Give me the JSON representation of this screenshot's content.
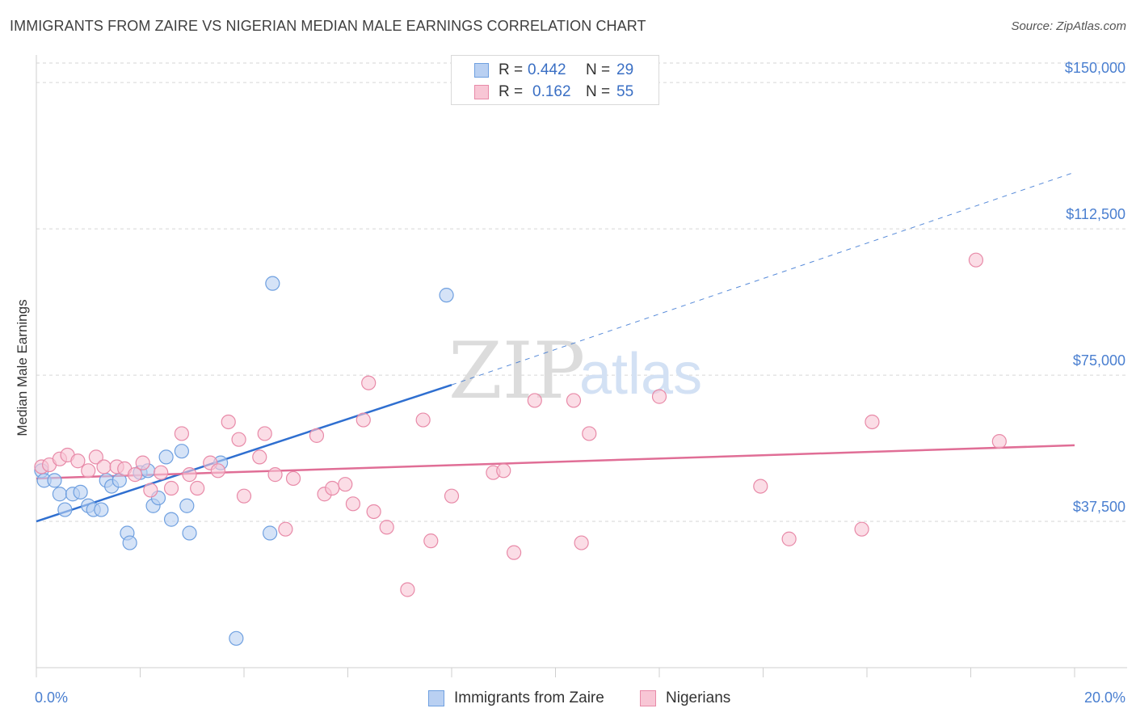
{
  "header": {
    "title": "IMMIGRANTS FROM ZAIRE VS NIGERIAN MEDIAN MALE EARNINGS CORRELATION CHART",
    "source": "Source: ZipAtlas.com"
  },
  "watermark": {
    "zip": "ZIP",
    "atlas": "atlas"
  },
  "legend": {
    "rows": [
      {
        "r_label": "R =",
        "r_value": "0.442",
        "n_label": "N =",
        "n_value": "29",
        "color": "#6fa0e0",
        "fill": "#b9d0f2"
      },
      {
        "r_label": "R =",
        "r_value": "0.162",
        "n_label": "N =",
        "n_value": "55",
        "color": "#e88aa8",
        "fill": "#f8c6d5"
      }
    ]
  },
  "bottom_legend": {
    "items": [
      {
        "label": "Immigrants from Zaire"
      },
      {
        "label": "Nigerians"
      }
    ]
  },
  "chart_data": {
    "type": "scatter",
    "title": "IMMIGRANTS FROM ZAIRE VS NIGERIAN MEDIAN MALE EARNINGS CORRELATION CHART",
    "xlabel": "",
    "ylabel": "Median Male Earnings",
    "xlim": [
      0,
      20
    ],
    "ylim": [
      0,
      155000
    ],
    "x_tick_labels": [
      {
        "value": 0,
        "label": "0.0%"
      },
      {
        "value": 20,
        "label": "20.0%"
      }
    ],
    "y_ticks": [
      {
        "value": 37500,
        "label": "$37,500"
      },
      {
        "value": 75000,
        "label": "$75,000"
      },
      {
        "value": 112500,
        "label": "$112,500"
      },
      {
        "value": 150000,
        "label": "$150,000"
      }
    ],
    "x_minor_ticks": [
      0,
      2,
      4,
      6,
      8,
      10,
      12,
      14,
      16,
      18,
      20
    ],
    "grid": true,
    "series": [
      {
        "name": "Immigrants from Zaire",
        "color": "#6fa0e0",
        "fill": "#b9d0f2",
        "trend": {
          "x0": 0,
          "y0": 37500,
          "x1": 8,
          "y1": 72500,
          "dash_to_x": 20,
          "dash_to_y": 127000,
          "color": "#2f6fd0"
        },
        "points": [
          [
            0.1,
            50500
          ],
          [
            0.15,
            48000
          ],
          [
            0.35,
            48000
          ],
          [
            0.45,
            44500
          ],
          [
            0.55,
            40500
          ],
          [
            0.7,
            44500
          ],
          [
            0.85,
            45000
          ],
          [
            1.0,
            41500
          ],
          [
            1.1,
            40500
          ],
          [
            1.25,
            40500
          ],
          [
            1.35,
            48000
          ],
          [
            1.45,
            46500
          ],
          [
            1.6,
            48000
          ],
          [
            1.75,
            34500
          ],
          [
            1.8,
            32000
          ],
          [
            2.0,
            50000
          ],
          [
            2.15,
            50500
          ],
          [
            2.25,
            41500
          ],
          [
            2.35,
            43500
          ],
          [
            2.5,
            54000
          ],
          [
            2.6,
            38000
          ],
          [
            2.8,
            55500
          ],
          [
            2.9,
            41500
          ],
          [
            2.95,
            34500
          ],
          [
            3.55,
            52500
          ],
          [
            3.85,
            7500
          ],
          [
            4.55,
            98500
          ],
          [
            4.5,
            34500
          ],
          [
            7.9,
            95500
          ]
        ]
      },
      {
        "name": "Nigerians",
        "color": "#e88aa8",
        "fill": "#f8c6d5",
        "trend": {
          "x0": 0,
          "y0": 48500,
          "x1": 20,
          "y1": 57000,
          "color": "#e06e96"
        },
        "points": [
          [
            0.1,
            51500
          ],
          [
            0.25,
            52000
          ],
          [
            0.45,
            53500
          ],
          [
            0.6,
            54500
          ],
          [
            0.8,
            53000
          ],
          [
            1.0,
            50500
          ],
          [
            1.15,
            54000
          ],
          [
            1.3,
            51500
          ],
          [
            1.55,
            51500
          ],
          [
            1.7,
            51000
          ],
          [
            1.9,
            49500
          ],
          [
            2.05,
            52500
          ],
          [
            2.2,
            45500
          ],
          [
            2.4,
            50000
          ],
          [
            2.6,
            46000
          ],
          [
            2.8,
            60000
          ],
          [
            2.95,
            49500
          ],
          [
            3.1,
            46000
          ],
          [
            3.35,
            52500
          ],
          [
            3.5,
            50500
          ],
          [
            3.7,
            63000
          ],
          [
            3.9,
            58500
          ],
          [
            4.0,
            44000
          ],
          [
            4.3,
            54000
          ],
          [
            4.4,
            60000
          ],
          [
            4.6,
            49500
          ],
          [
            4.8,
            35500
          ],
          [
            4.95,
            48500
          ],
          [
            5.4,
            59500
          ],
          [
            5.55,
            44500
          ],
          [
            5.7,
            46000
          ],
          [
            5.95,
            47000
          ],
          [
            6.1,
            42000
          ],
          [
            6.3,
            63500
          ],
          [
            6.4,
            73000
          ],
          [
            6.5,
            40000
          ],
          [
            6.75,
            36000
          ],
          [
            7.15,
            20000
          ],
          [
            7.45,
            63500
          ],
          [
            7.6,
            32500
          ],
          [
            8.0,
            44000
          ],
          [
            8.8,
            50000
          ],
          [
            9.0,
            50500
          ],
          [
            9.2,
            29500
          ],
          [
            9.6,
            68500
          ],
          [
            10.35,
            68500
          ],
          [
            10.5,
            32000
          ],
          [
            10.65,
            60000
          ],
          [
            12.0,
            69500
          ],
          [
            13.95,
            46500
          ],
          [
            14.5,
            33000
          ],
          [
            15.9,
            35500
          ],
          [
            16.1,
            63000
          ],
          [
            18.1,
            104500
          ],
          [
            18.55,
            58000
          ]
        ]
      }
    ]
  }
}
